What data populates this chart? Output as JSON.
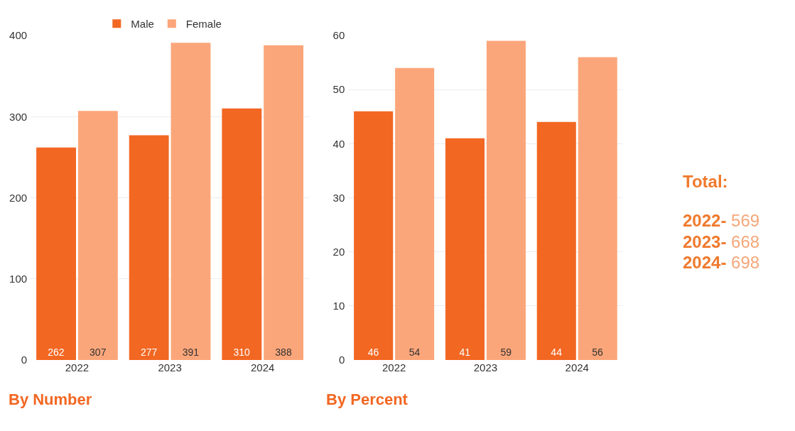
{
  "chart_data": [
    {
      "type": "bar",
      "title": "By Number",
      "categories": [
        "2022",
        "2023",
        "2024"
      ],
      "series": [
        {
          "name": "Male",
          "color": "#f26722",
          "values": [
            262,
            277,
            310
          ]
        },
        {
          "name": "Female",
          "color": "#fba67a",
          "values": [
            307,
            391,
            388
          ]
        }
      ],
      "ylim": [
        0,
        400
      ],
      "yticks": [
        0,
        100,
        200,
        300,
        400
      ],
      "grid": "y",
      "legend": "top",
      "data_labels": true
    },
    {
      "type": "bar",
      "title": "By Percent",
      "categories": [
        "2022",
        "2023",
        "2024"
      ],
      "series": [
        {
          "color": "#f26722",
          "values": [
            46,
            41,
            44
          ]
        },
        {
          "color": "#fba67a",
          "values": [
            54,
            59,
            56
          ]
        }
      ],
      "ylim": [
        0,
        60
      ],
      "yticks": [
        0,
        10,
        20,
        30,
        40,
        50,
        60
      ],
      "grid": "y",
      "data_labels": true
    },
    {
      "type": "other",
      "annotations": [
        "Total:",
        "2022- 569",
        "2023- 668",
        "2024- 698"
      ]
    }
  ]
}
